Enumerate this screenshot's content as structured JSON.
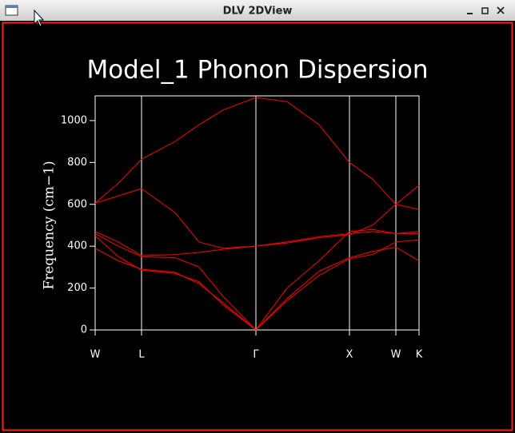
{
  "window": {
    "title": "DLV 2DView"
  },
  "chart_data": {
    "type": "line",
    "title": "Model_1 Phonon Dispersion",
    "y_label": "Frequency (cm−1)",
    "x": [
      0,
      0.29,
      0.58,
      1.0,
      1.3,
      1.6,
      2.01,
      2.4,
      2.8,
      3.18,
      3.47,
      3.76,
      4.05
    ],
    "series": [
      {
        "color": "#ff0000",
        "values": [
          605,
          700,
          815,
          900,
          980,
          1050,
          1110,
          1090,
          980,
          800,
          720,
          600,
          575
        ]
      },
      {
        "color": "#ff0000",
        "values": [
          605,
          640,
          675,
          560,
          420,
          390,
          400,
          415,
          440,
          455,
          500,
          600,
          690
        ]
      },
      {
        "color": "#ff0000",
        "values": [
          470,
          420,
          355,
          360,
          370,
          385,
          400,
          420,
          445,
          460,
          470,
          460,
          470
        ]
      },
      {
        "color": "#ff0000",
        "values": [
          460,
          400,
          350,
          345,
          300,
          160,
          0,
          200,
          330,
          470,
          480,
          460,
          460
        ]
      },
      {
        "color": "#ff0000",
        "values": [
          390,
          330,
          290,
          275,
          220,
          130,
          0,
          150,
          280,
          345,
          375,
          395,
          330
        ]
      },
      {
        "color": "#ff0000",
        "values": [
          450,
          350,
          285,
          270,
          230,
          120,
          0,
          140,
          260,
          340,
          360,
          420,
          430
        ]
      }
    ],
    "xlim": [
      0,
      4.05
    ],
    "xticks": [
      {
        "value": 0,
        "label": "W"
      },
      {
        "value": 0.58,
        "label": "L"
      },
      {
        "value": 2.01,
        "label": "Γ"
      },
      {
        "value": 3.18,
        "label": "X"
      },
      {
        "value": 3.76,
        "label": "W"
      },
      {
        "value": 4.05,
        "label": "K"
      }
    ],
    "ylim": [
      0,
      1118
    ],
    "yticks": [
      0,
      200,
      400,
      600,
      800,
      1000
    ],
    "grid": true
  }
}
